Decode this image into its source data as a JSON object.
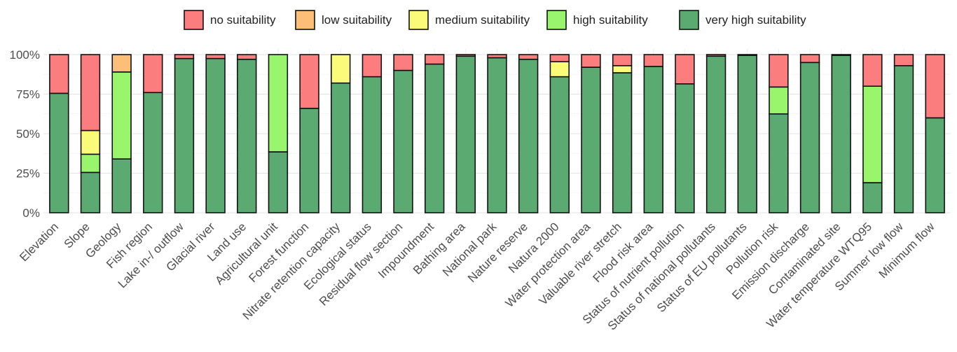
{
  "chart_data": {
    "type": "bar",
    "stacked": true,
    "percent_axis": true,
    "legend_position": "top",
    "grid": true,
    "ylim": [
      0,
      100
    ],
    "yticks": [
      0,
      25,
      50,
      75,
      100
    ],
    "ytick_labels": [
      "0%",
      "25%",
      "50%",
      "75%",
      "100%"
    ],
    "categories": [
      "Elevation",
      "Slope",
      "Geology",
      "Fish region",
      "Lake in-/ outflow",
      "Glacial river",
      "Land use",
      "Agricultural unit",
      "Forest function",
      "Nitrate retention capacity",
      "Ecological status",
      "Residual flow section",
      "Impoundment",
      "Bathing area",
      "National park",
      "Nature reserve",
      "Natura 2000",
      "Water protection area",
      "Valuable river stretch",
      "Flood risk area",
      "Status of nutrient pollution",
      "Status of national pollutants",
      "Status of EU pollutants",
      "Pollution risk",
      "Emission discharge",
      "Contaminated site",
      "Water temperature WTQ95",
      "Summer low flow",
      "Minimum flow"
    ],
    "series": [
      {
        "name": "very high suitability",
        "color": "#5aaa72",
        "values": [
          75.5,
          25.5,
          34,
          76,
          97.5,
          97.5,
          97,
          38.5,
          66,
          82,
          86,
          90,
          94,
          99,
          98,
          97,
          86,
          92,
          88.5,
          92.5,
          81.5,
          99,
          99.5,
          62.5,
          95,
          99.5,
          19,
          93,
          60
        ]
      },
      {
        "name": "high suitability",
        "color": "#99f56b",
        "values": [
          0,
          11.5,
          55,
          0,
          0,
          0,
          0,
          61.5,
          0,
          0,
          0,
          0,
          0,
          0,
          0,
          0,
          0,
          0,
          0,
          0,
          0,
          0,
          0,
          17,
          0,
          0,
          61,
          0,
          0
        ]
      },
      {
        "name": "medium suitability",
        "color": "#fbfb7a",
        "values": [
          0,
          15,
          0,
          0,
          0,
          0,
          0,
          0,
          0,
          18,
          0,
          0,
          0,
          0,
          0,
          0,
          9.5,
          0,
          4.5,
          0,
          0,
          0,
          0,
          0,
          0,
          0,
          0,
          0,
          0
        ]
      },
      {
        "name": "low suitability",
        "color": "#fdbf78",
        "values": [
          0,
          0,
          11,
          0,
          0,
          0,
          0,
          0,
          0,
          0,
          0,
          0,
          0,
          0,
          0,
          0,
          0,
          0,
          0,
          0,
          0,
          0,
          0,
          0,
          0,
          0,
          0,
          0,
          0
        ]
      },
      {
        "name": "no suitability",
        "color": "#fb7d7d",
        "values": [
          24.5,
          48,
          0,
          24,
          2.5,
          2.5,
          3,
          0,
          34,
          0,
          14,
          10,
          6,
          1,
          2,
          3,
          4.5,
          8,
          7,
          7.5,
          18.5,
          1,
          0.5,
          20.5,
          5,
          0.5,
          20,
          7,
          40
        ]
      }
    ],
    "legend_order": [
      "no suitability",
      "low suitability",
      "medium suitability",
      "high suitability",
      "very high suitability"
    ]
  }
}
